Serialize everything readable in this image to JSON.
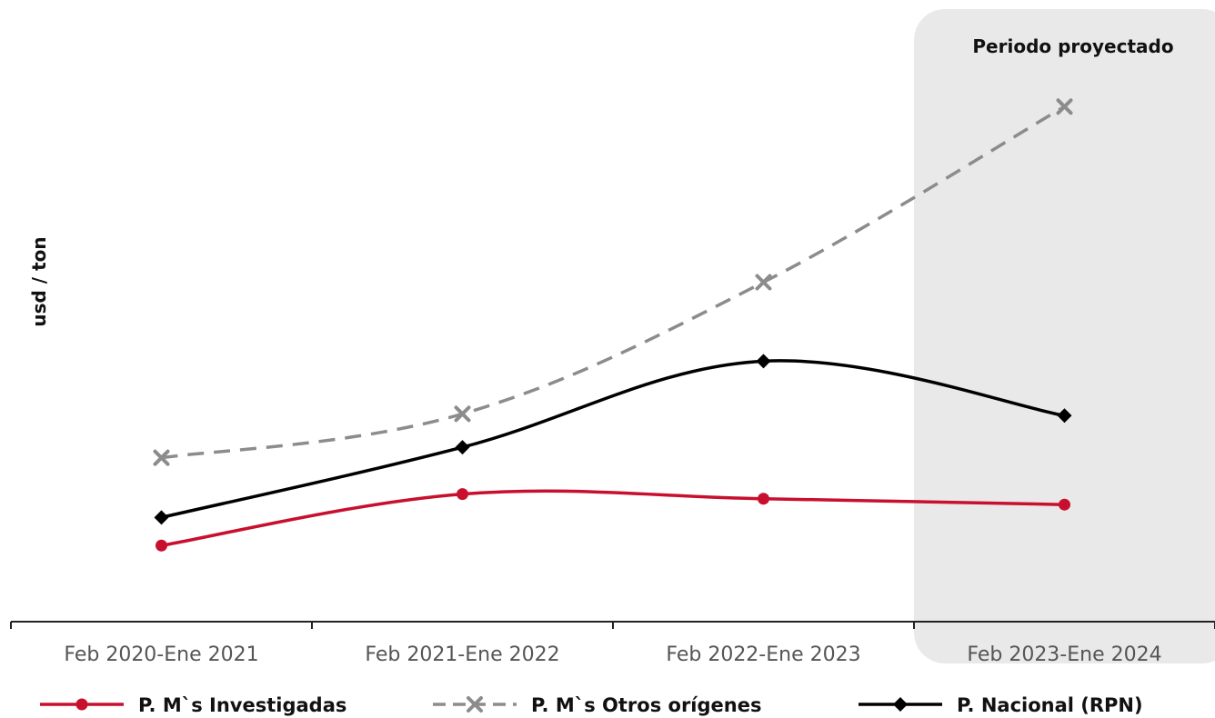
{
  "chart_data": {
    "type": "line",
    "title": "",
    "xlabel": "",
    "ylabel": "usd / ton",
    "categories": [
      "Feb 2020-Ene 2021",
      "Feb 2021-Ene 2022",
      "Feb 2022-Ene 2023",
      "Feb 2023-Ene 2024"
    ],
    "ylim": [
      0,
      1000
    ],
    "grid": false,
    "y_ticks_shown": false,
    "legend_position": "bottom",
    "projected_region": {
      "label": "Periodo proyectado",
      "category": "Feb 2023-Ene 2024",
      "color": "#e9e9e9"
    },
    "series": [
      {
        "name": "P. M`s Investigadas",
        "color": "#c8102e",
        "style": "solid",
        "marker": "circle",
        "values": [
          130,
          218,
          210,
          200
        ]
      },
      {
        "name": "P. M`s Otros orígenes",
        "color": "#8c8c8c",
        "style": "dashed",
        "marker": "x",
        "values": [
          280,
          355,
          580,
          880
        ]
      },
      {
        "name": "P. Nacional (RPN)",
        "color": "#000000",
        "style": "solid",
        "marker": "diamond",
        "values": [
          178,
          298,
          445,
          352
        ]
      }
    ]
  }
}
